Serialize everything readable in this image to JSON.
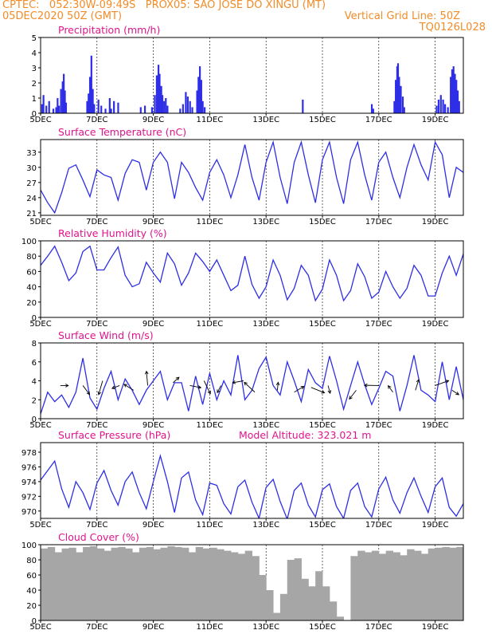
{
  "header": {
    "line1": "CPTEC:   052:30W-09:49S   PROX05: SAO JOSE DO XINGU (MT)",
    "line2_left": "05DEC2020 50Z (GMT)",
    "line2_right": "Vertical Grid Line: 50Z",
    "line3_right": "TQ0126L028"
  },
  "colors": {
    "header": "#f28c28",
    "title": "#e0148c",
    "line": "#2e2ee6",
    "cloud": "#a6a6a6",
    "frame": "#000000"
  },
  "x_ticks": [
    "5DEC",
    "7DEC",
    "9DEC",
    "11DEC",
    "13DEC",
    "15DEC",
    "17DEC",
    "19DEC"
  ],
  "x_tick_days": [
    5,
    7,
    9,
    11,
    13,
    15,
    17,
    19
  ],
  "x_range": [
    5.0,
    20.0
  ],
  "chart_data": [
    {
      "type": "bar",
      "title": "Precipitation (mm/h)",
      "ylim": [
        0,
        5
      ],
      "yticks": [
        0,
        1,
        2,
        3,
        4,
        5
      ],
      "points": [
        [
          5.05,
          0.6
        ],
        [
          5.1,
          1.2
        ],
        [
          5.2,
          0.5
        ],
        [
          5.3,
          0.8
        ],
        [
          5.45,
          0.3
        ],
        [
          5.55,
          0.4
        ],
        [
          5.6,
          1.0
        ],
        [
          5.65,
          0.5
        ],
        [
          5.72,
          1.6
        ],
        [
          5.78,
          2.1
        ],
        [
          5.82,
          2.6
        ],
        [
          5.86,
          1.5
        ],
        [
          5.9,
          0.7
        ],
        [
          6.65,
          0.8
        ],
        [
          6.7,
          1.3
        ],
        [
          6.75,
          2.4
        ],
        [
          6.8,
          3.8
        ],
        [
          6.85,
          1.6
        ],
        [
          6.9,
          0.6
        ],
        [
          7.05,
          0.9
        ],
        [
          7.15,
          0.5
        ],
        [
          7.3,
          0.3
        ],
        [
          7.45,
          1.0
        ],
        [
          7.5,
          0.3
        ],
        [
          7.6,
          0.8
        ],
        [
          7.75,
          0.7
        ],
        [
          8.55,
          0.4
        ],
        [
          8.7,
          0.5
        ],
        [
          8.95,
          0.4
        ],
        [
          9.05,
          1.2
        ],
        [
          9.12,
          2.5
        ],
        [
          9.18,
          3.2
        ],
        [
          9.22,
          2.6
        ],
        [
          9.28,
          1.8
        ],
        [
          9.32,
          1.2
        ],
        [
          9.38,
          0.8
        ],
        [
          9.44,
          1.0
        ],
        [
          9.5,
          0.5
        ],
        [
          9.95,
          0.3
        ],
        [
          10.05,
          0.6
        ],
        [
          10.15,
          1.4
        ],
        [
          10.22,
          1.1
        ],
        [
          10.3,
          0.8
        ],
        [
          10.38,
          0.4
        ],
        [
          10.55,
          1.5
        ],
        [
          10.6,
          2.4
        ],
        [
          10.65,
          3.1
        ],
        [
          10.7,
          2.2
        ],
        [
          10.75,
          0.8
        ],
        [
          10.82,
          0.4
        ],
        [
          14.3,
          0.9
        ],
        [
          16.75,
          0.6
        ],
        [
          16.8,
          0.3
        ],
        [
          17.55,
          0.8
        ],
        [
          17.6,
          2.2
        ],
        [
          17.65,
          3.1
        ],
        [
          17.68,
          3.3
        ],
        [
          17.72,
          2.4
        ],
        [
          17.78,
          1.8
        ],
        [
          17.85,
          1.1
        ],
        [
          17.9,
          0.4
        ],
        [
          19.05,
          0.5
        ],
        [
          19.12,
          0.9
        ],
        [
          19.2,
          1.2
        ],
        [
          19.28,
          0.9
        ],
        [
          19.35,
          0.6
        ],
        [
          19.45,
          0.4
        ],
        [
          19.55,
          2.4
        ],
        [
          19.6,
          2.9
        ],
        [
          19.65,
          3.1
        ],
        [
          19.7,
          2.6
        ],
        [
          19.75,
          2.2
        ],
        [
          19.8,
          1.5
        ],
        [
          19.85,
          0.8
        ]
      ]
    },
    {
      "type": "line",
      "title": "Surface Temperature (nC)",
      "ylim": [
        20.5,
        35.5
      ],
      "yticks": [
        21,
        24,
        27,
        30,
        33
      ],
      "x": [
        5.0,
        5.25,
        5.5,
        5.75,
        6.0,
        6.25,
        6.5,
        6.75,
        7.0,
        7.25,
        7.5,
        7.75,
        8.0,
        8.25,
        8.5,
        8.75,
        9.0,
        9.25,
        9.5,
        9.75,
        10.0,
        10.25,
        10.5,
        10.75,
        11.0,
        11.25,
        11.5,
        11.75,
        12.0,
        12.25,
        12.5,
        12.75,
        13.0,
        13.25,
        13.5,
        13.75,
        14.0,
        14.25,
        14.5,
        14.75,
        15.0,
        15.25,
        15.5,
        15.75,
        16.0,
        16.25,
        16.5,
        16.75,
        17.0,
        17.25,
        17.5,
        17.75,
        18.0,
        18.25,
        18.5,
        18.75,
        19.0,
        19.25,
        19.5,
        19.75,
        20.0
      ],
      "y": [
        25.5,
        23.0,
        21.0,
        25.0,
        29.8,
        30.5,
        27.5,
        24.2,
        29.5,
        28.5,
        28.0,
        23.5,
        28.8,
        31.5,
        31.0,
        25.5,
        31.0,
        33.0,
        31.0,
        23.8,
        31.0,
        29.0,
        26.0,
        23.5,
        29.0,
        31.5,
        28.5,
        24.0,
        28.5,
        34.5,
        28.0,
        23.5,
        31.0,
        35.0,
        28.0,
        22.8,
        31.0,
        35.0,
        28.5,
        23.0,
        31.5,
        35.0,
        28.0,
        22.8,
        31.5,
        35.0,
        28.5,
        23.5,
        31.0,
        33.0,
        28.0,
        24.0,
        30.0,
        34.5,
        30.5,
        27.5,
        35.0,
        32.5,
        24.0,
        30.0,
        29.0
      ]
    },
    {
      "type": "line",
      "title": "Relative Humidity (%)",
      "ylim": [
        0,
        100
      ],
      "yticks": [
        0,
        20,
        40,
        60,
        80,
        100
      ],
      "x": [
        5.0,
        5.25,
        5.5,
        5.75,
        6.0,
        6.25,
        6.5,
        6.75,
        7.0,
        7.25,
        7.5,
        7.75,
        8.0,
        8.25,
        8.5,
        8.75,
        9.0,
        9.25,
        9.5,
        9.75,
        10.0,
        10.25,
        10.5,
        10.75,
        11.0,
        11.25,
        11.5,
        11.75,
        12.0,
        12.25,
        12.5,
        12.75,
        13.0,
        13.25,
        13.5,
        13.75,
        14.0,
        14.25,
        14.5,
        14.75,
        15.0,
        15.25,
        15.5,
        15.75,
        16.0,
        16.25,
        16.5,
        16.75,
        17.0,
        17.25,
        17.5,
        17.75,
        18.0,
        18.25,
        18.5,
        18.75,
        19.0,
        19.25,
        19.5,
        19.75,
        20.0
      ],
      "y": [
        68,
        80,
        93,
        72,
        48,
        58,
        86,
        93,
        62,
        62,
        78,
        92,
        55,
        40,
        44,
        72,
        58,
        46,
        84,
        70,
        42,
        58,
        84,
        73,
        60,
        75,
        55,
        35,
        42,
        80,
        43,
        25,
        40,
        75,
        55,
        23,
        38,
        68,
        55,
        22,
        37,
        75,
        55,
        22,
        35,
        70,
        53,
        25,
        33,
        60,
        40,
        25,
        38,
        68,
        55,
        28,
        28,
        58,
        80,
        55,
        83
      ]
    },
    {
      "type": "line",
      "title": "Surface Wind (m/s)",
      "ylim": [
        0,
        8
      ],
      "yticks": [
        0,
        2,
        4,
        6,
        8
      ],
      "x": [
        5.0,
        5.25,
        5.5,
        5.75,
        6.0,
        6.25,
        6.5,
        6.75,
        7.0,
        7.25,
        7.5,
        7.75,
        8.0,
        8.25,
        8.5,
        8.75,
        9.0,
        9.25,
        9.5,
        9.75,
        10.0,
        10.25,
        10.5,
        10.75,
        11.0,
        11.25,
        11.5,
        11.75,
        12.0,
        12.25,
        12.5,
        12.75,
        13.0,
        13.25,
        13.5,
        13.75,
        14.0,
        14.25,
        14.5,
        14.75,
        15.0,
        15.25,
        15.5,
        15.75,
        16.0,
        16.25,
        16.5,
        16.75,
        17.0,
        17.25,
        17.5,
        17.75,
        18.0,
        18.25,
        18.5,
        18.75,
        19.0,
        19.25,
        19.5,
        19.75,
        20.0
      ],
      "y": [
        0.5,
        2.8,
        1.8,
        2.5,
        1.2,
        2.8,
        6.4,
        2.2,
        1.0,
        3.2,
        5.0,
        2.0,
        4.2,
        3.0,
        1.5,
        3.0,
        4.0,
        5.0,
        2.0,
        3.8,
        3.8,
        0.8,
        4.5,
        1.5,
        4.8,
        2.0,
        4.0,
        2.5,
        6.7,
        2.0,
        3.0,
        5.3,
        6.5,
        3.5,
        2.5,
        6.0,
        4.0,
        1.8,
        5.2,
        3.8,
        3.2,
        6.6,
        4.0,
        1.0,
        3.5,
        6.0,
        3.6,
        1.5,
        3.2,
        5.0,
        4.5,
        0.8,
        3.5,
        6.7,
        3.0,
        2.5,
        1.8,
        6.0,
        2.0,
        5.5,
        2.0
      ],
      "arrows": [
        [
          5.7,
          3.5
        ],
        [
          6.5,
          3.5
        ],
        [
          7.2,
          4.0
        ],
        [
          7.8,
          3.5
        ],
        [
          8.3,
          3.0
        ],
        [
          8.8,
          3.5
        ],
        [
          9.7,
          3.8
        ],
        [
          10.3,
          3.5
        ],
        [
          10.8,
          4.0
        ],
        [
          11.4,
          3.5
        ],
        [
          12.2,
          4.0
        ],
        [
          12.6,
          2.8
        ],
        [
          13.4,
          3.0
        ],
        [
          14.0,
          2.8
        ],
        [
          14.6,
          3.3
        ],
        [
          15.2,
          3.5
        ],
        [
          16.2,
          3.0
        ],
        [
          17.0,
          3.5
        ],
        [
          17.5,
          2.8
        ],
        [
          18.3,
          3.0
        ],
        [
          19.0,
          3.5
        ],
        [
          19.6,
          3.0
        ]
      ]
    },
    {
      "type": "line",
      "title": "Surface Pressure (hPa)",
      "annotation": "Model Altitude: 323.021 m",
      "ylim": [
        969.0,
        979.3
      ],
      "yticks": [
        970,
        972,
        974,
        976,
        978
      ],
      "x": [
        5.0,
        5.25,
        5.5,
        5.75,
        6.0,
        6.25,
        6.5,
        6.75,
        7.0,
        7.25,
        7.5,
        7.75,
        8.0,
        8.25,
        8.5,
        8.75,
        9.0,
        9.25,
        9.5,
        9.75,
        10.0,
        10.25,
        10.5,
        10.75,
        11.0,
        11.25,
        11.5,
        11.75,
        12.0,
        12.25,
        12.5,
        12.75,
        13.0,
        13.25,
        13.5,
        13.75,
        14.0,
        14.25,
        14.5,
        14.75,
        15.0,
        15.25,
        15.5,
        15.75,
        16.0,
        16.25,
        16.5,
        16.75,
        17.0,
        17.25,
        17.5,
        17.75,
        18.0,
        18.25,
        18.5,
        18.75,
        19.0,
        19.25,
        19.5,
        19.75,
        20.0
      ],
      "y": [
        974.2,
        975.5,
        976.8,
        973.0,
        970.5,
        974.0,
        972.5,
        970.2,
        973.8,
        975.5,
        972.8,
        970.8,
        974.0,
        975.3,
        972.5,
        970.3,
        974.0,
        977.5,
        974.0,
        969.8,
        974.5,
        975.3,
        971.5,
        969.5,
        973.8,
        973.5,
        971.0,
        969.6,
        973.3,
        974.2,
        971.2,
        969.0,
        973.2,
        974.3,
        971.3,
        968.9,
        972.8,
        973.8,
        970.8,
        969.2,
        972.9,
        973.7,
        970.6,
        969.0,
        972.8,
        973.8,
        970.6,
        969.2,
        973.0,
        974.6,
        971.5,
        969.7,
        972.5,
        974.5,
        972.0,
        969.8,
        973.3,
        974.5,
        970.5,
        969.3,
        971.0
      ]
    },
    {
      "type": "bar",
      "title": "Cloud Cover (%)",
      "ylim": [
        0,
        100
      ],
      "yticks": [
        0,
        20,
        40,
        60,
        80,
        100
      ],
      "points": [
        [
          5.0,
          95
        ],
        [
          5.25,
          97
        ],
        [
          5.5,
          90
        ],
        [
          5.75,
          95
        ],
        [
          6.0,
          96
        ],
        [
          6.25,
          90
        ],
        [
          6.5,
          97
        ],
        [
          6.75,
          98
        ],
        [
          7.0,
          95
        ],
        [
          7.25,
          92
        ],
        [
          7.5,
          96
        ],
        [
          7.75,
          97
        ],
        [
          8.0,
          95
        ],
        [
          8.25,
          90
        ],
        [
          8.5,
          96
        ],
        [
          8.75,
          97
        ],
        [
          9.0,
          94
        ],
        [
          9.25,
          96
        ],
        [
          9.5,
          98
        ],
        [
          9.75,
          97
        ],
        [
          10.0,
          96
        ],
        [
          10.25,
          90
        ],
        [
          10.5,
          97
        ],
        [
          10.75,
          95
        ],
        [
          11.0,
          96
        ],
        [
          11.25,
          94
        ],
        [
          11.5,
          92
        ],
        [
          11.75,
          90
        ],
        [
          12.0,
          88
        ],
        [
          12.25,
          92
        ],
        [
          12.5,
          85
        ],
        [
          12.75,
          60
        ],
        [
          13.0,
          40
        ],
        [
          13.25,
          10
        ],
        [
          13.5,
          35
        ],
        [
          13.75,
          80
        ],
        [
          14.0,
          82
        ],
        [
          14.25,
          55
        ],
        [
          14.5,
          45
        ],
        [
          14.75,
          65
        ],
        [
          15.0,
          45
        ],
        [
          15.25,
          25
        ],
        [
          15.5,
          5
        ],
        [
          15.75,
          0
        ],
        [
          16.0,
          85
        ],
        [
          16.25,
          92
        ],
        [
          16.5,
          90
        ],
        [
          16.75,
          92
        ],
        [
          17.0,
          88
        ],
        [
          17.25,
          92
        ],
        [
          17.5,
          90
        ],
        [
          17.75,
          86
        ],
        [
          18.0,
          94
        ],
        [
          18.25,
          92
        ],
        [
          18.5,
          88
        ],
        [
          18.75,
          95
        ],
        [
          19.0,
          96
        ],
        [
          19.25,
          97
        ],
        [
          19.5,
          96
        ],
        [
          19.75,
          97
        ],
        [
          20.0,
          98
        ]
      ]
    }
  ]
}
